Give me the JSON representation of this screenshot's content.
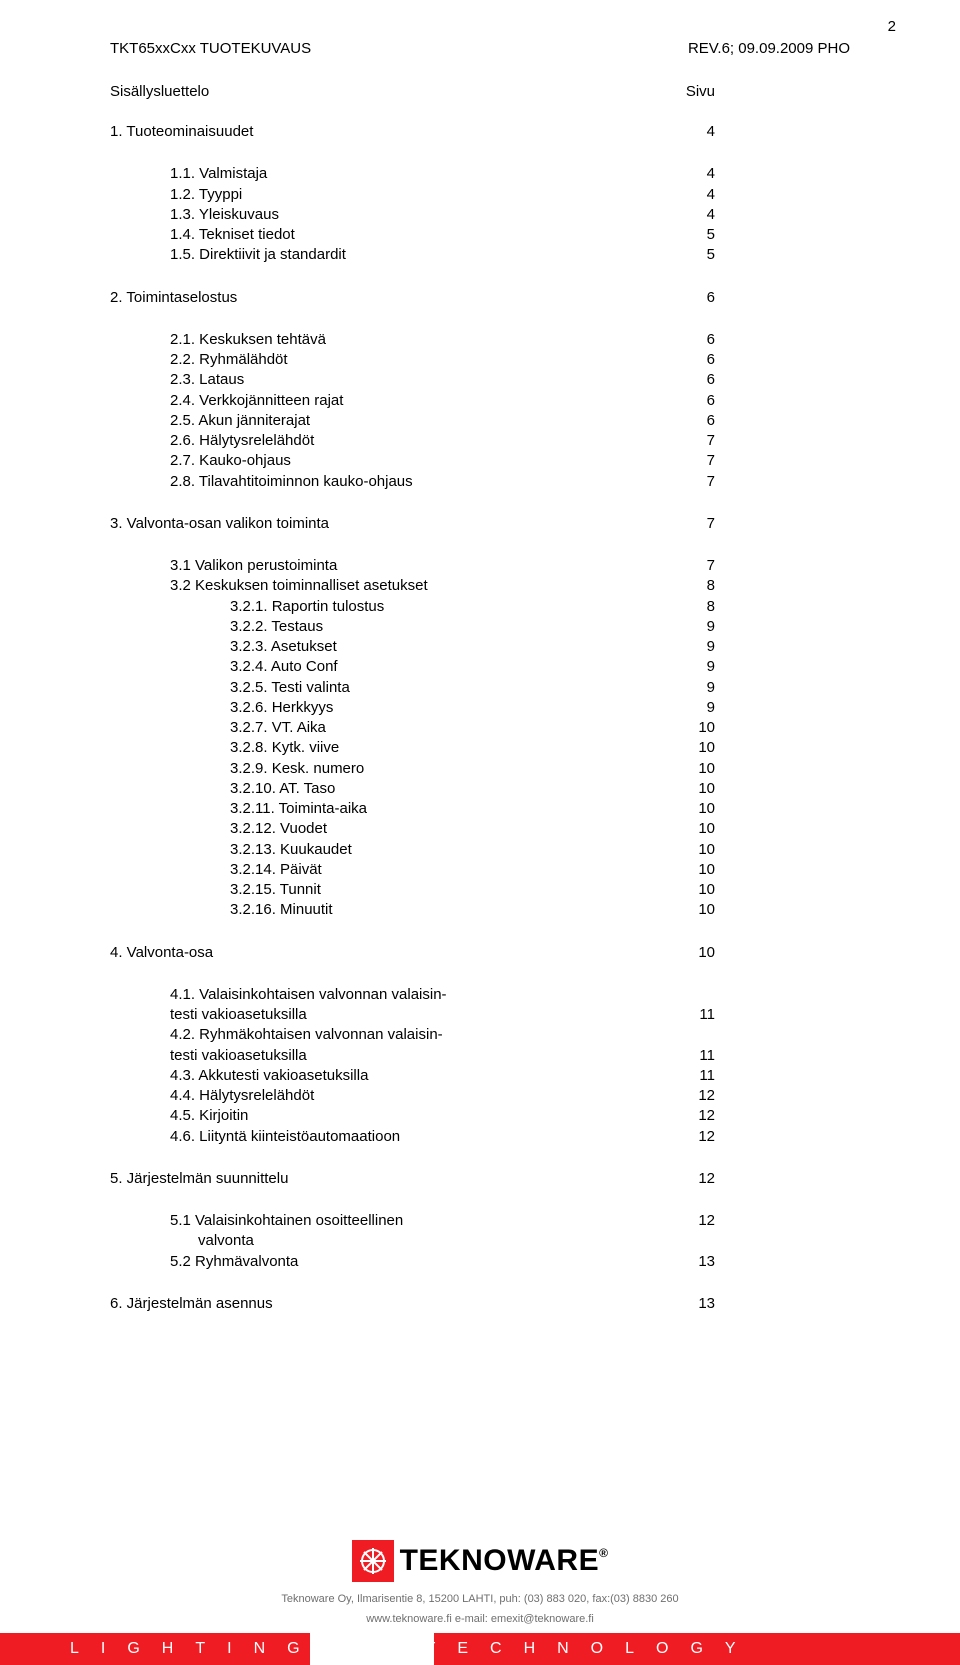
{
  "page_number": "2",
  "header_left": "TKT65xxCxx TUOTEKUVAUS",
  "header_right": "REV.6; 09.09.2009 PHO",
  "toc_title_label": "Sisällysluettelo",
  "toc_title_page": "Sivu",
  "section1": {
    "title": "1. Tuoteominaisuudet",
    "page": "4"
  },
  "section1_items": [
    {
      "label": "1.1. Valmistaja",
      "page": "4"
    },
    {
      "label": "1.2. Tyyppi",
      "page": "4"
    },
    {
      "label": "1.3. Yleiskuvaus",
      "page": "4"
    },
    {
      "label": "1.4. Tekniset tiedot",
      "page": "5"
    },
    {
      "label": "1.5. Direktiivit ja standardit",
      "page": "5"
    }
  ],
  "section2": {
    "title": "2. Toimintaselostus",
    "page": "6"
  },
  "section2_items": [
    {
      "label": "2.1. Keskuksen tehtävä",
      "page": "6"
    },
    {
      "label": "2.2. Ryhmälähdöt",
      "page": "6"
    },
    {
      "label": "2.3. Lataus",
      "page": "6"
    },
    {
      "label": "2.4. Verkkojännitteen rajat",
      "page": "6"
    },
    {
      "label": "2.5. Akun jänniterajat",
      "page": "6"
    },
    {
      "label": "2.6. Hälytysrelelähdöt",
      "page": "7"
    },
    {
      "label": "2.7. Kauko-ohjaus",
      "page": "7"
    },
    {
      "label": "2.8. Tilavahtitoiminnon kauko-ohjaus",
      "page": "7"
    }
  ],
  "section3": {
    "title": "3. Valvonta-osan valikon toiminta",
    "page": "7"
  },
  "section3_items_l1": [
    {
      "label": "3.1 Valikon perustoiminta",
      "page": "7"
    },
    {
      "label": "3.2 Keskuksen toiminnalliset asetukset",
      "page": "8"
    }
  ],
  "section3_items_l2": [
    {
      "label": "3.2.1. Raportin tulostus",
      "page": "8"
    },
    {
      "label": "3.2.2. Testaus",
      "page": "9"
    },
    {
      "label": "3.2.3. Asetukset",
      "page": "9"
    },
    {
      "label": "3.2.4. Auto Conf",
      "page": "9"
    },
    {
      "label": "3.2.5. Testi valinta",
      "page": "9"
    },
    {
      "label": "3.2.6. Herkkyys",
      "page": "9"
    },
    {
      "label": "3.2.7. VT. Aika",
      "page": "10"
    },
    {
      "label": "3.2.8. Kytk. viive",
      "page": "10"
    },
    {
      "label": "3.2.9. Kesk. numero",
      "page": "10"
    },
    {
      "label": "3.2.10. AT. Taso",
      "page": "10"
    },
    {
      "label": "3.2.11. Toiminta-aika",
      "page": "10"
    },
    {
      "label": "3.2.12. Vuodet",
      "page": "10"
    },
    {
      "label": "3.2.13. Kuukaudet",
      "page": "10"
    },
    {
      "label": "3.2.14. Päivät",
      "page": "10"
    },
    {
      "label": "3.2.15. Tunnit",
      "page": "10"
    },
    {
      "label": "3.2.16. Minuutit",
      "page": "10"
    }
  ],
  "section4": {
    "title": "4. Valvonta-osa",
    "page": "10"
  },
  "section4_items": [
    {
      "label": "4.1. Valaisinkohtaisen valvonnan valaisin-",
      "page": ""
    },
    {
      "label": "testi vakioasetuksilla",
      "page": "11"
    },
    {
      "label": "4.2. Ryhmäkohtaisen valvonnan valaisin-",
      "page": ""
    },
    {
      "label": "testi vakioasetuksilla",
      "page": "11"
    },
    {
      "label": "4.3. Akkutesti vakioasetuksilla",
      "page": "11"
    },
    {
      "label": "4.4. Hälytysrelelähdöt",
      "page": "12"
    },
    {
      "label": "4.5. Kirjoitin",
      "page": "12"
    },
    {
      "label": "4.6. Liityntä kiinteistöautomaatioon",
      "page": "12"
    }
  ],
  "section5": {
    "title": "5. Järjestelmän suunnittelu",
    "page": "12"
  },
  "section5_items_a": [
    {
      "label": "5.1 Valaisinkohtainen osoitteellinen",
      "page": "12"
    }
  ],
  "section5_items_b": [
    {
      "label": "valvonta",
      "page": ""
    }
  ],
  "section5_items_c": [
    {
      "label": "5.2 Ryhmävalvonta",
      "page": "13"
    }
  ],
  "section6": {
    "title": "6. Järjestelmän asennus",
    "page": "13"
  },
  "footer": {
    "brand": "TEKNOWARE",
    "contact": "Teknoware Oy, Ilmarisentie 8, 15200 LAHTI, puh: (03) 883 020, fax:(03) 8830 260",
    "web": "www.teknoware.fi  e-mail: emexit@teknoware.fi",
    "bar_left": "LIGHTING",
    "bar_right": "TECHNOLOGY",
    "brand_color": "#ef1c24"
  }
}
